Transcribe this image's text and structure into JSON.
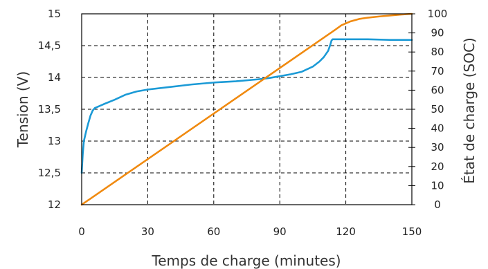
{
  "chart_data": {
    "type": "line",
    "xlabel": "Temps de charge (minutes)",
    "ylabel": "Tension (V)",
    "y2label": "État de charge (SOC)",
    "xlim": [
      0,
      150
    ],
    "ylim": [
      12,
      15
    ],
    "y2lim": [
      0,
      100
    ],
    "x_ticks": [
      0,
      30,
      60,
      90,
      120,
      150
    ],
    "x_tick_labels": [
      "0",
      "30",
      "60",
      "90",
      "120",
      "150"
    ],
    "y_ticks": [
      12,
      12.5,
      13,
      13.5,
      14,
      14.5,
      15
    ],
    "y_tick_labels": [
      "12",
      "12,5",
      "13",
      "13,5",
      "14",
      "14,5",
      "15"
    ],
    "y2_ticks": [
      0,
      10,
      20,
      30,
      40,
      50,
      60,
      70,
      80,
      90,
      100
    ],
    "y2_tick_labels": [
      "0",
      "10",
      "20",
      "30",
      "40",
      "50",
      "60",
      "70",
      "80",
      "90",
      "100"
    ],
    "grid": true,
    "series": [
      {
        "axis": "left",
        "color": "#1b9ad6",
        "x": [
          0,
          0.5,
          1,
          2,
          3,
          4,
          5,
          6,
          8,
          10,
          15,
          20,
          25,
          30,
          40,
          50,
          60,
          70,
          80,
          85,
          90,
          95,
          100,
          105,
          108,
          110,
          112,
          113,
          113.5,
          114,
          120,
          130,
          140,
          150
        ],
        "y": [
          12.5,
          12.8,
          13.0,
          13.15,
          13.28,
          13.4,
          13.48,
          13.52,
          13.55,
          13.58,
          13.65,
          13.73,
          13.78,
          13.81,
          13.85,
          13.89,
          13.92,
          13.94,
          13.97,
          13.99,
          14.02,
          14.05,
          14.09,
          14.17,
          14.25,
          14.32,
          14.42,
          14.52,
          14.58,
          14.6,
          14.6,
          14.6,
          14.59,
          14.59
        ]
      },
      {
        "axis": "right",
        "color": "#f08a10",
        "x": [
          0,
          115,
          118,
          122,
          126,
          130,
          135,
          140,
          145,
          150
        ],
        "y": [
          0,
          91.5,
          94,
          96,
          97.3,
          98,
          98.6,
          99.1,
          99.6,
          100
        ]
      }
    ]
  }
}
